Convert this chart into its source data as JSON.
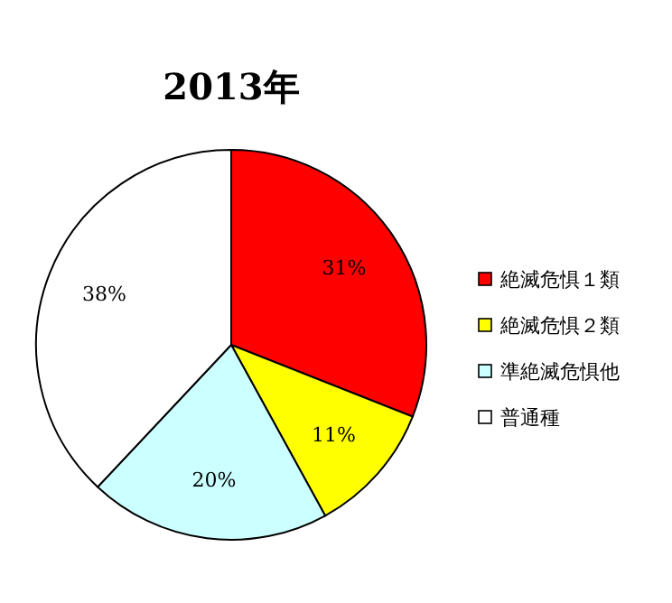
{
  "chart_data": {
    "type": "pie",
    "title": "2013年",
    "categories": [
      "絶滅危惧１類",
      "絶滅危惧２類",
      "準絶滅危惧他",
      "普通種"
    ],
    "values": [
      31,
      11,
      20,
      38
    ],
    "colors": [
      "#ff0000",
      "#ffff00",
      "#ccffff",
      "#ffffff"
    ],
    "value_labels": [
      "31%",
      "11%",
      "20%",
      "38%"
    ],
    "legend": "right"
  }
}
